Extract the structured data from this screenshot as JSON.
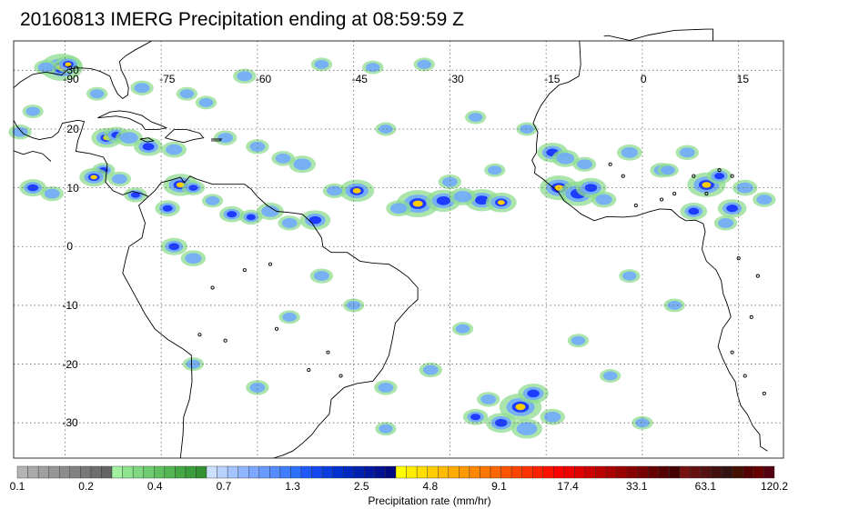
{
  "title": "20160813 IMERG Precipitation ending at 08:59:59 Z",
  "map": {
    "lon_labels": [
      "-90",
      "-75",
      "-60",
      "-45",
      "-30",
      "-15",
      "0",
      "15"
    ],
    "lat_labels": [
      "30",
      "20",
      "10",
      "0",
      "-10",
      "-20",
      "-30"
    ],
    "lon_min": -98,
    "lon_max": 22,
    "lat_min": -36,
    "lat_max": 35,
    "grid": true
  },
  "colorbar": {
    "label": "Precipitation rate (mm/hr)",
    "tick_labels": [
      "0.1",
      "0.2",
      "0.4",
      "0.7",
      "1.3",
      "2.5",
      "4.8",
      "9.1",
      "17.4",
      "33.1",
      "63.1",
      "120.2"
    ],
    "colors": [
      "#b4b4b4",
      "#aaaaaa",
      "#a0a0a0",
      "#969696",
      "#8c8c8c",
      "#828282",
      "#787878",
      "#6e6e6e",
      "#646464",
      "#a0f0a0",
      "#8fe48f",
      "#7fd87f",
      "#70cc70",
      "#60c060",
      "#52b452",
      "#45a845",
      "#3a9c3a",
      "#339033",
      "#cce0ff",
      "#b8d2ff",
      "#a4c4ff",
      "#90b6ff",
      "#7ca8ff",
      "#689aff",
      "#548cff",
      "#407eff",
      "#2c70ff",
      "#1e5aff",
      "#1448f0",
      "#0a3ce0",
      "#0030d0",
      "#0028c0",
      "#0020b0",
      "#0018a0",
      "#001090",
      "#000880",
      "#ffff00",
      "#ffee00",
      "#ffdd00",
      "#ffcc00",
      "#ffbb00",
      "#ffaa00",
      "#ff9900",
      "#ff8800",
      "#ff7700",
      "#ff6600",
      "#ff5500",
      "#ff4400",
      "#ff3300",
      "#ff2200",
      "#ff1100",
      "#ff0000",
      "#ee0000",
      "#dd0000",
      "#cc0000",
      "#bb0000",
      "#aa0000",
      "#990000",
      "#880000",
      "#770000",
      "#660000",
      "#550000",
      "#440000",
      "#771111",
      "#661111",
      "#551111",
      "#441111",
      "#331111",
      "#441100",
      "#550000",
      "#660000",
      "#550011"
    ]
  }
}
